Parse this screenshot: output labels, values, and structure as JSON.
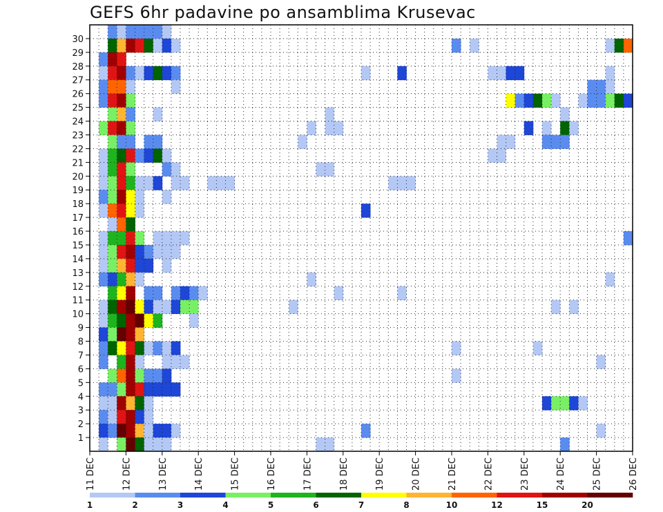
{
  "chart_data": {
    "type": "heatmap",
    "title": "GEFS 6hr padavine po ansamblima Krusevac",
    "y_ticks": [
      "1",
      "2",
      "3",
      "4",
      "5",
      "6",
      "7",
      "8",
      "9",
      "10",
      "11",
      "12",
      "13",
      "14",
      "15",
      "16",
      "17",
      "18",
      "19",
      "20",
      "21",
      "22",
      "23",
      "24",
      "25",
      "26",
      "27",
      "28",
      "29",
      "30"
    ],
    "x_ticks": [
      "11 DEC",
      "12 DEC",
      "13 DEC",
      "14 DEC",
      "15 DEC",
      "16 DEC",
      "17 DEC",
      "18 DEC",
      "19 DEC",
      "20 DEC",
      "21 DEC",
      "22 DEC",
      "23 DEC",
      "24 DEC",
      "25 DEC",
      "26 DEC"
    ],
    "colorbar": {
      "labels": [
        "1",
        "2",
        "3",
        "4",
        "5",
        "6",
        "7",
        "8",
        "10",
        "12",
        "15",
        "20"
      ],
      "colors": [
        "#b4c8f5",
        "#5a8cf0",
        "#1e46d7",
        "#78f064",
        "#1eb41e",
        "#006400",
        "#ffff00",
        "#ffb432",
        "#ff6400",
        "#e11414",
        "#a00000",
        "#640000"
      ]
    },
    "grid": true,
    "cells": [
      {
        "row": 30,
        "values": {
          "2": 2,
          "3": 1,
          "4": 2,
          "5": 2,
          "6": 2,
          "7": 2,
          "8": 1
        }
      },
      {
        "row": 29,
        "values": {
          "2": 6,
          "3": 8,
          "4": 11,
          "5": 10,
          "6": 6,
          "7": 1,
          "8": 3,
          "9": 1,
          "40": 2,
          "42": 1,
          "57": 1,
          "58": 6,
          "59": 9
        }
      },
      {
        "row": 28,
        "values": {
          "1": 2,
          "2": 11,
          "3": 10
        }
      },
      {
        "row": 27,
        "values": {
          "1": 1,
          "2": 10,
          "3": 11,
          "4": 2,
          "5": 1,
          "6": 3,
          "7": 6,
          "8": 3,
          "9": 2,
          "30": 1,
          "34": 3,
          "44": 1,
          "45": 1,
          "46": 3,
          "47": 3,
          "57": 1
        }
      },
      {
        "row": 26,
        "values": {
          "1": 2,
          "2": 9,
          "3": 9,
          "4": 1,
          "9": 1,
          "55": 2,
          "56": 2,
          "57": 1
        }
      },
      {
        "row": 25,
        "values": {
          "1": 2,
          "2": 10,
          "3": 11,
          "4": 4,
          "46": 7,
          "47": 2,
          "48": 3,
          "49": 6,
          "50": 4,
          "51": 1,
          "54": 1,
          "55": 2,
          "56": 2,
          "57": 4,
          "58": 6,
          "59": 3
        }
      },
      {
        "row": 24,
        "values": {
          "2": 4,
          "3": 8,
          "4": 2,
          "7": 1,
          "26": 1,
          "52": 1
        }
      },
      {
        "row": 23,
        "values": {
          "1": 4,
          "2": 10,
          "3": 11,
          "4": 4,
          "24": 1,
          "26": 1,
          "27": 1,
          "48": 3,
          "50": 1,
          "52": 6,
          "53": 1
        }
      },
      {
        "row": 22,
        "values": {
          "2": 4,
          "3": 2,
          "4": 2,
          "6": 2,
          "7": 2,
          "23": 1,
          "45": 1,
          "46": 1,
          "50": 2,
          "51": 2,
          "52": 2
        }
      },
      {
        "row": 21,
        "values": {
          "1": 1,
          "2": 5,
          "3": 6,
          "4": 10,
          "5": 2,
          "6": 3,
          "7": 6,
          "8": 1,
          "44": 1,
          "45": 1
        }
      },
      {
        "row": 20,
        "values": {
          "1": 1,
          "2": 5,
          "3": 10,
          "4": 4,
          "8": 2,
          "9": 1,
          "25": 1,
          "26": 1
        }
      },
      {
        "row": 19,
        "values": {
          "1": 1,
          "2": 4,
          "3": 10,
          "4": 5,
          "5": 1,
          "6": 1,
          "7": 3,
          "9": 1,
          "10": 1,
          "13": 1,
          "14": 1,
          "15": 1,
          "33": 1,
          "34": 1,
          "35": 1
        }
      },
      {
        "row": 18,
        "values": {
          "1": 2,
          "2": 4,
          "3": 11,
          "4": 7,
          "5": 1,
          "8": 1
        }
      },
      {
        "row": 17,
        "values": {
          "1": 1,
          "2": 9,
          "3": 10,
          "4": 7,
          "5": 1,
          "30": 3
        }
      },
      {
        "row": 16,
        "values": {
          "2": 1,
          "3": 9,
          "4": 6
        }
      },
      {
        "row": 15,
        "values": {
          "1": 1,
          "2": 5,
          "3": 5,
          "4": 10,
          "5": 4,
          "7": 1,
          "8": 1,
          "9": 1,
          "10": 1,
          "59": 2
        }
      },
      {
        "row": 14,
        "values": {
          "1": 1,
          "2": 4,
          "3": 10,
          "4": 11,
          "5": 3,
          "6": 2,
          "7": 1,
          "8": 1,
          "9": 1
        }
      },
      {
        "row": 13,
        "values": {
          "1": 1,
          "2": 4,
          "3": 8,
          "4": 10,
          "5": 3,
          "6": 3,
          "8": 1
        }
      },
      {
        "row": 12,
        "values": {
          "1": 2,
          "2": 3,
          "3": 5,
          "4": 8,
          "5": 1,
          "24": 1,
          "57": 1
        }
      },
      {
        "row": 11,
        "values": {
          "2": 5,
          "3": 7,
          "4": 11,
          "6": 2,
          "7": 2,
          "9": 2,
          "10": 3,
          "11": 2,
          "12": 1,
          "27": 1,
          "34": 1
        }
      },
      {
        "row": 10,
        "values": {
          "1": 1,
          "2": 6,
          "3": 11,
          "4": 12,
          "5": 7,
          "6": 3,
          "7": 1,
          "8": 1,
          "9": 3,
          "10": 4,
          "11": 4,
          "22": 1,
          "51": 1,
          "53": 1
        }
      },
      {
        "row": 9,
        "values": {
          "1": 1,
          "2": 5,
          "3": 6,
          "4": 11,
          "5": 12,
          "6": 7,
          "7": 5,
          "11": 1
        }
      },
      {
        "row": 8,
        "values": {
          "1": 3,
          "2": 4,
          "3": 12,
          "4": 11,
          "5": 8
        }
      },
      {
        "row": 7,
        "values": {
          "1": 2,
          "2": 6,
          "3": 7,
          "4": 10,
          "5": 6,
          "6": 1,
          "7": 2,
          "8": 1,
          "9": 3,
          "40": 1,
          "49": 1
        }
      },
      {
        "row": 6,
        "values": {
          "1": 2,
          "3": 5,
          "4": 11,
          "5": 1,
          "8": 1,
          "9": 1,
          "10": 1,
          "56": 1
        }
      },
      {
        "row": 5,
        "values": {
          "2": 4,
          "3": 9,
          "4": 11,
          "5": 4,
          "6": 2,
          "7": 2,
          "8": 3,
          "40": 1
        }
      },
      {
        "row": 4,
        "values": {
          "1": 2,
          "2": 2,
          "3": 4,
          "4": 11,
          "5": 10,
          "6": 3,
          "7": 3,
          "8": 3,
          "9": 3
        }
      },
      {
        "row": 3,
        "values": {
          "1": 1,
          "2": 1,
          "3": 11,
          "4": 8,
          "5": 6,
          "6": 1,
          "50": 3,
          "51": 4,
          "52": 4,
          "53": 3,
          "54": 1
        }
      },
      {
        "row": 2,
        "values": {
          "1": 2,
          "2": 1,
          "3": 10,
          "4": 11,
          "5": 3,
          "6": 1
        }
      },
      {
        "row": 1,
        "values": {
          "1": 3,
          "2": 2,
          "3": 12,
          "4": 11,
          "5": 8,
          "6": 1,
          "7": 3,
          "8": 3,
          "9": 1,
          "30": 2,
          "56": 1
        }
      },
      {
        "row": 0,
        "values": {
          "1": 1,
          "3": 4,
          "4": 12,
          "5": 6,
          "6": 1,
          "7": 1,
          "8": 1,
          "25": 1,
          "26": 1,
          "52": 2
        }
      }
    ]
  }
}
